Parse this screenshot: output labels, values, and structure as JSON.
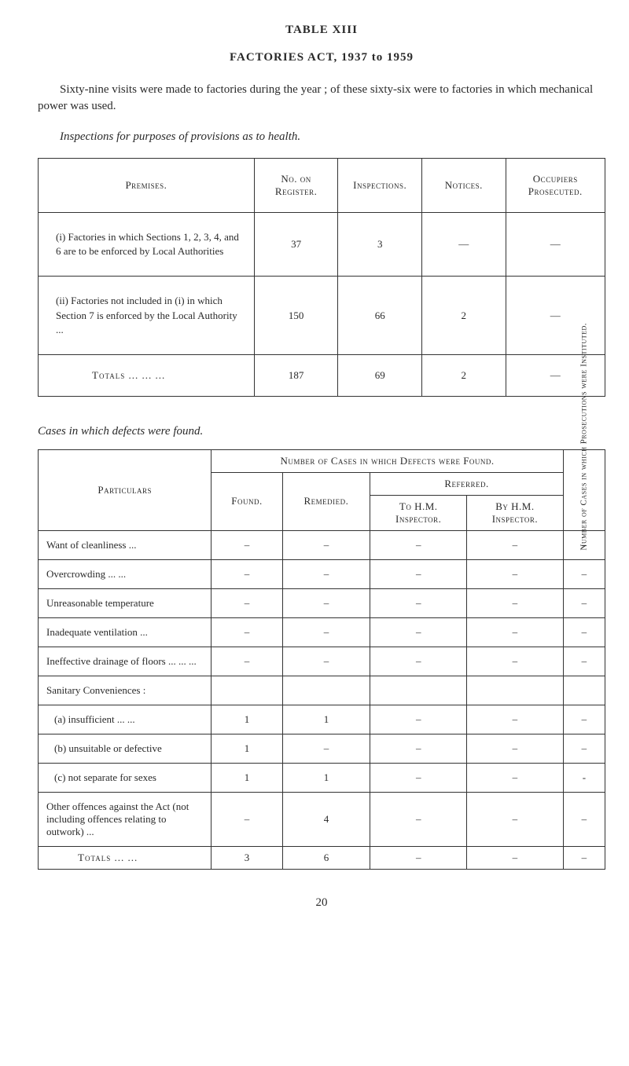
{
  "header": {
    "tableLabel": "TABLE XIII",
    "actTitle": "FACTORIES ACT, 1937 to 1959"
  },
  "intro": "Sixty-nine visits were made to factories during the year ; of these sixty-six were to factories in which mechanical power was used.",
  "subhead": "Inspections for purposes of provisions as to health.",
  "table1": {
    "headers": {
      "premises": "Premises.",
      "register": "No. on Register.",
      "inspections": "Inspections.",
      "notices": "Notices.",
      "occupiers": "Occupiers Prosecuted."
    },
    "rows": [
      {
        "label": "(i) Factories in which Sections 1, 2, 3, 4, and 6 are to be enforced by Local Authorities",
        "register": "37",
        "inspections": "3",
        "notices": "—",
        "occupiers": "—"
      },
      {
        "label": "(ii) Factories not included in (i) in which Section 7 is enforced by the Local Authority   ...",
        "register": "150",
        "inspections": "66",
        "notices": "2",
        "occupiers": "—"
      }
    ],
    "totals": {
      "label": "Totals   ...   ...   ...",
      "register": "187",
      "inspections": "69",
      "notices": "2",
      "occupiers": "—"
    }
  },
  "sectionNote": "Cases in which defects were found.",
  "table2": {
    "headers": {
      "particulars": "Particulars",
      "groupTop": "Number of Cases in which Defects were Found.",
      "found": "Found.",
      "remedied": "Remedied.",
      "referred": "Referred.",
      "toHM": "To H.M. Inspector.",
      "byHM": "By H.M. Inspector.",
      "vcol": "Number of Cases in which Prosecutions were Instituted."
    },
    "rows": [
      {
        "label": "Want of cleanliness  ...",
        "found": "–",
        "remedied": "–",
        "toHM": "–",
        "byHM": "–",
        "v": "–"
      },
      {
        "label": "Overcrowding  ...  ...",
        "found": "–",
        "remedied": "–",
        "toHM": "–",
        "byHM": "–",
        "v": "–"
      },
      {
        "label": "Unreasonable temperature",
        "found": "–",
        "remedied": "–",
        "toHM": "–",
        "byHM": "–",
        "v": "–"
      },
      {
        "label": "Inadequate ventilation ...",
        "found": "–",
        "remedied": "–",
        "toHM": "–",
        "byHM": "–",
        "v": "–"
      },
      {
        "label": "Ineffective drainage of floors  ...  ...  ...",
        "found": "–",
        "remedied": "–",
        "toHM": "–",
        "byHM": "–",
        "v": "–"
      },
      {
        "label": "Sanitary Conveniences :",
        "found": "",
        "remedied": "",
        "toHM": "",
        "byHM": "",
        "v": ""
      },
      {
        "label": "(a)  insufficient  ...  ...",
        "sub": true,
        "found": "1",
        "remedied": "1",
        "toHM": "–",
        "byHM": "–",
        "v": "–"
      },
      {
        "label": "(b)  unsuitable or defective",
        "sub": true,
        "found": "1",
        "remedied": "–",
        "toHM": "–",
        "byHM": "–",
        "v": "–"
      },
      {
        "label": "(c)  not separate for sexes",
        "sub": true,
        "found": "1",
        "remedied": "1",
        "toHM": "–",
        "byHM": "–",
        "v": "-"
      },
      {
        "label": "Other offences against the Act (not including offences relating to outwork)  ...",
        "found": "–",
        "remedied": "4",
        "toHM": "–",
        "byHM": "–",
        "v": "–"
      }
    ],
    "totals": {
      "label": "Totals   ...   ...",
      "found": "3",
      "remedied": "6",
      "toHM": "–",
      "byHM": "–",
      "v": "–"
    }
  },
  "pageNumber": "20"
}
